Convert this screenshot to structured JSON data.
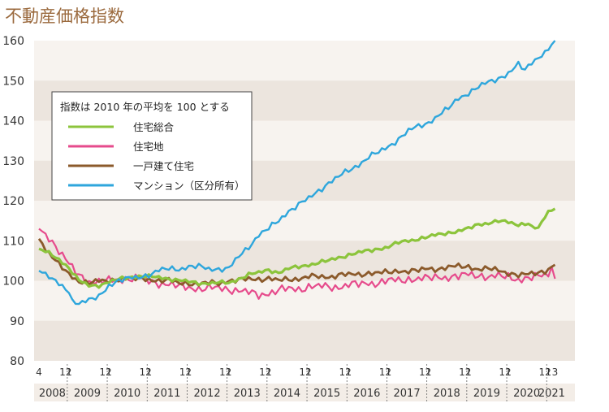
{
  "chart_data": {
    "type": "line",
    "title": "不動産価格指数",
    "ylim": [
      80,
      160
    ],
    "y_ticks": [
      80,
      90,
      100,
      110,
      120,
      130,
      140,
      150,
      160
    ],
    "grid": "horizontal bands",
    "legend_title": "指数は 2010 年の平均を 100 とする",
    "legend_position": "upper-left",
    "x_month_labels": [
      {
        "text": "4",
        "t": 0
      },
      {
        "text": "12",
        "t": 8
      },
      {
        "text": "1",
        "t": 9
      },
      {
        "text": "12",
        "t": 20
      },
      {
        "text": "1",
        "t": 21
      },
      {
        "text": "12",
        "t": 32
      },
      {
        "text": "1",
        "t": 33
      },
      {
        "text": "12",
        "t": 44
      },
      {
        "text": "1",
        "t": 45
      },
      {
        "text": "12",
        "t": 56
      },
      {
        "text": "1",
        "t": 57
      },
      {
        "text": "12",
        "t": 68
      },
      {
        "text": "1",
        "t": 69
      },
      {
        "text": "12",
        "t": 80
      },
      {
        "text": "1",
        "t": 81
      },
      {
        "text": "12",
        "t": 92
      },
      {
        "text": "1",
        "t": 93
      },
      {
        "text": "12",
        "t": 104
      },
      {
        "text": "1",
        "t": 105
      },
      {
        "text": "12",
        "t": 116
      },
      {
        "text": "1",
        "t": 117
      },
      {
        "text": "12",
        "t": 128
      },
      {
        "text": "1",
        "t": 129
      },
      {
        "text": "12",
        "t": 140
      },
      {
        "text": "1",
        "t": 141
      },
      {
        "text": "12",
        "t": 152
      },
      {
        "text": "1",
        "t": 153
      },
      {
        "text": "3",
        "t": 155
      }
    ],
    "x_years": [
      {
        "label": "2008",
        "start": 0,
        "end": 8
      },
      {
        "label": "2009",
        "start": 9,
        "end": 20
      },
      {
        "label": "2010",
        "start": 21,
        "end": 32
      },
      {
        "label": "2011",
        "start": 33,
        "end": 44
      },
      {
        "label": "2012",
        "start": 45,
        "end": 56
      },
      {
        "label": "2013",
        "start": 57,
        "end": 68
      },
      {
        "label": "2014",
        "start": 69,
        "end": 80
      },
      {
        "label": "2015",
        "start": 81,
        "end": 92
      },
      {
        "label": "2016",
        "start": 93,
        "end": 104
      },
      {
        "label": "2017",
        "start": 105,
        "end": 116
      },
      {
        "label": "2018",
        "start": 117,
        "end": 128
      },
      {
        "label": "2019",
        "start": 129,
        "end": 140
      },
      {
        "label": "2020",
        "start": 141,
        "end": 152
      },
      {
        "label": "2021",
        "start": 153,
        "end": 155
      }
    ],
    "series": [
      {
        "name": "住宅総合",
        "color": "#8cc43c",
        "width": 3.2,
        "points": [
          [
            0,
            108.0
          ],
          [
            3,
            107.0
          ],
          [
            6,
            105.5
          ],
          [
            9,
            103.0
          ],
          [
            12,
            100.0
          ],
          [
            15,
            99.0
          ],
          [
            18,
            98.8
          ],
          [
            21,
            99.5
          ],
          [
            24,
            100.5
          ],
          [
            27,
            101.0
          ],
          [
            30,
            101.0
          ],
          [
            33,
            101.0
          ],
          [
            36,
            101.0
          ],
          [
            39,
            100.5
          ],
          [
            42,
            100.0
          ],
          [
            45,
            99.8
          ],
          [
            48,
            99.5
          ],
          [
            51,
            99.3
          ],
          [
            54,
            99.5
          ],
          [
            57,
            99.5
          ],
          [
            60,
            100.5
          ],
          [
            63,
            101.5
          ],
          [
            66,
            102.0
          ],
          [
            69,
            102.8
          ],
          [
            72,
            102.0
          ],
          [
            75,
            103.0
          ],
          [
            78,
            103.5
          ],
          [
            81,
            104.0
          ],
          [
            84,
            104.5
          ],
          [
            87,
            105.0
          ],
          [
            90,
            105.8
          ],
          [
            93,
            106.5
          ],
          [
            96,
            107.0
          ],
          [
            99,
            107.5
          ],
          [
            102,
            108.0
          ],
          [
            105,
            108.5
          ],
          [
            108,
            109.5
          ],
          [
            111,
            110.0
          ],
          [
            114,
            110.5
          ],
          [
            117,
            111.0
          ],
          [
            120,
            111.5
          ],
          [
            123,
            112.0
          ],
          [
            126,
            112.5
          ],
          [
            129,
            113.0
          ],
          [
            132,
            114.0
          ],
          [
            135,
            114.5
          ],
          [
            138,
            115.0
          ],
          [
            141,
            114.5
          ],
          [
            144,
            114.0
          ],
          [
            147,
            114.5
          ],
          [
            148,
            113.5
          ],
          [
            150,
            113.0
          ],
          [
            151,
            114.5
          ],
          [
            152,
            116.0
          ],
          [
            153,
            117.0
          ],
          [
            154,
            117.5
          ],
          [
            155,
            118.0
          ]
        ],
        "jitter": 0.6
      },
      {
        "name": "住宅地",
        "color": "#e64b8c",
        "width": 2.2,
        "points": [
          [
            0,
            113.0
          ],
          [
            3,
            111.0
          ],
          [
            6,
            107.5
          ],
          [
            9,
            104.0
          ],
          [
            12,
            101.5
          ],
          [
            15,
            100.0
          ],
          [
            18,
            99.5
          ],
          [
            21,
            100.0
          ],
          [
            24,
            100.5
          ],
          [
            27,
            100.5
          ],
          [
            30,
            100.5
          ],
          [
            33,
            100.0
          ],
          [
            36,
            99.5
          ],
          [
            39,
            99.0
          ],
          [
            42,
            98.5
          ],
          [
            45,
            98.5
          ],
          [
            48,
            98.0
          ],
          [
            51,
            98.0
          ],
          [
            54,
            98.2
          ],
          [
            57,
            98.0
          ],
          [
            60,
            97.5
          ],
          [
            63,
            97.0
          ],
          [
            66,
            96.5
          ],
          [
            69,
            97.0
          ],
          [
            72,
            97.5
          ],
          [
            75,
            98.0
          ],
          [
            78,
            98.0
          ],
          [
            81,
            98.5
          ],
          [
            84,
            98.5
          ],
          [
            87,
            98.5
          ],
          [
            90,
            98.5
          ],
          [
            93,
            99.0
          ],
          [
            96,
            99.0
          ],
          [
            99,
            99.5
          ],
          [
            102,
            99.5
          ],
          [
            105,
            100.0
          ],
          [
            108,
            100.0
          ],
          [
            111,
            100.5
          ],
          [
            114,
            100.5
          ],
          [
            117,
            100.5
          ],
          [
            120,
            101.0
          ],
          [
            123,
            101.0
          ],
          [
            126,
            101.0
          ],
          [
            129,
            101.5
          ],
          [
            132,
            101.5
          ],
          [
            135,
            101.0
          ],
          [
            138,
            101.0
          ],
          [
            141,
            101.0
          ],
          [
            144,
            100.5
          ],
          [
            147,
            100.5
          ],
          [
            150,
            101.0
          ],
          [
            152,
            101.5
          ],
          [
            153,
            102.0
          ],
          [
            154,
            103.5
          ],
          [
            155,
            100.5
          ]
        ],
        "jitter": 1.4
      },
      {
        "name": "一戸建て住宅",
        "color": "#8b5a2b",
        "width": 2.8,
        "points": [
          [
            0,
            110.5
          ],
          [
            3,
            107.0
          ],
          [
            6,
            104.0
          ],
          [
            9,
            101.5
          ],
          [
            12,
            100.0
          ],
          [
            15,
            99.5
          ],
          [
            18,
            99.8
          ],
          [
            21,
            100.0
          ],
          [
            24,
            100.5
          ],
          [
            27,
            100.5
          ],
          [
            30,
            100.5
          ],
          [
            33,
            100.5
          ],
          [
            36,
            100.0
          ],
          [
            39,
            100.0
          ],
          [
            42,
            99.5
          ],
          [
            45,
            99.5
          ],
          [
            48,
            99.0
          ],
          [
            51,
            99.5
          ],
          [
            54,
            99.5
          ],
          [
            57,
            100.0
          ],
          [
            60,
            100.0
          ],
          [
            63,
            100.5
          ],
          [
            66,
            100.5
          ],
          [
            69,
            100.5
          ],
          [
            72,
            100.0
          ],
          [
            75,
            100.5
          ],
          [
            78,
            100.5
          ],
          [
            81,
            101.0
          ],
          [
            84,
            101.0
          ],
          [
            87,
            101.0
          ],
          [
            90,
            101.5
          ],
          [
            93,
            101.5
          ],
          [
            96,
            101.5
          ],
          [
            99,
            102.0
          ],
          [
            102,
            102.0
          ],
          [
            105,
            102.0
          ],
          [
            108,
            102.5
          ],
          [
            111,
            102.5
          ],
          [
            114,
            102.5
          ],
          [
            117,
            103.0
          ],
          [
            120,
            103.0
          ],
          [
            123,
            103.5
          ],
          [
            126,
            103.5
          ],
          [
            129,
            103.5
          ],
          [
            132,
            103.0
          ],
          [
            135,
            103.0
          ],
          [
            138,
            102.5
          ],
          [
            141,
            102.0
          ],
          [
            144,
            101.5
          ],
          [
            147,
            101.5
          ],
          [
            150,
            102.0
          ],
          [
            152,
            102.5
          ],
          [
            153,
            103.0
          ],
          [
            154,
            103.5
          ],
          [
            155,
            104.0
          ]
        ],
        "jitter": 0.9
      },
      {
        "name": "マンション（区分所有）",
        "color": "#2ea6dc",
        "width": 2.4,
        "points": [
          [
            0,
            102.5
          ],
          [
            3,
            101.0
          ],
          [
            6,
            99.0
          ],
          [
            9,
            97.5
          ],
          [
            10,
            95.0
          ],
          [
            12,
            94.5
          ],
          [
            15,
            95.0
          ],
          [
            18,
            96.0
          ],
          [
            21,
            99.0
          ],
          [
            24,
            100.0
          ],
          [
            27,
            100.5
          ],
          [
            30,
            101.0
          ],
          [
            33,
            101.5
          ],
          [
            36,
            102.5
          ],
          [
            39,
            103.0
          ],
          [
            42,
            103.0
          ],
          [
            45,
            103.5
          ],
          [
            48,
            103.5
          ],
          [
            51,
            103.0
          ],
          [
            54,
            103.0
          ],
          [
            57,
            103.0
          ],
          [
            60,
            106.0
          ],
          [
            63,
            108.5
          ],
          [
            66,
            111.5
          ],
          [
            69,
            113.0
          ],
          [
            72,
            115.0
          ],
          [
            75,
            117.5
          ],
          [
            78,
            119.0
          ],
          [
            81,
            120.5
          ],
          [
            84,
            122.5
          ],
          [
            87,
            124.5
          ],
          [
            90,
            126.0
          ],
          [
            93,
            127.5
          ],
          [
            96,
            129.0
          ],
          [
            99,
            131.0
          ],
          [
            102,
            132.0
          ],
          [
            105,
            133.5
          ],
          [
            108,
            135.5
          ],
          [
            111,
            137.5
          ],
          [
            114,
            138.5
          ],
          [
            117,
            139.5
          ],
          [
            120,
            141.5
          ],
          [
            123,
            143.0
          ],
          [
            126,
            145.5
          ],
          [
            129,
            147.0
          ],
          [
            132,
            148.5
          ],
          [
            135,
            149.5
          ],
          [
            138,
            150.5
          ],
          [
            141,
            152.0
          ],
          [
            144,
            154.0
          ],
          [
            146,
            152.5
          ],
          [
            148,
            154.5
          ],
          [
            150,
            156.0
          ],
          [
            152,
            157.0
          ],
          [
            153,
            158.0
          ],
          [
            154,
            159.0
          ],
          [
            155,
            160.0
          ]
        ],
        "jitter": 0.9
      }
    ]
  }
}
